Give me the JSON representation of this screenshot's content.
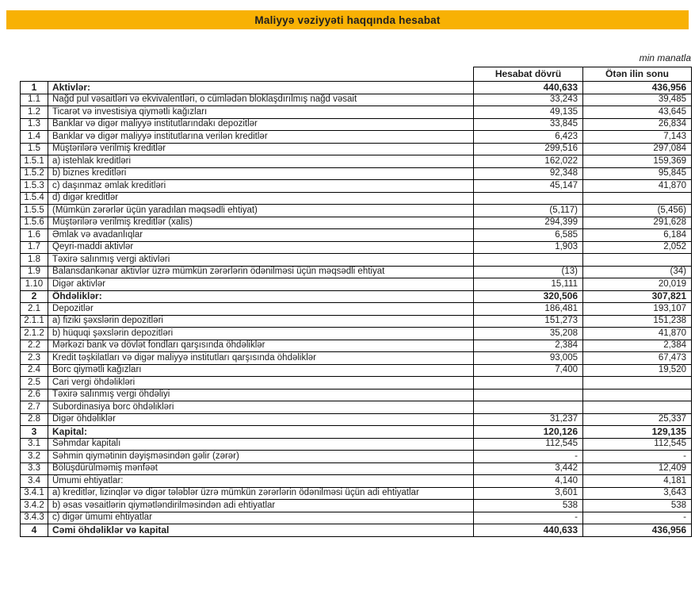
{
  "title": "Maliyyə vəziyyəti haqqında hesabat",
  "unit_note": "min manatla",
  "colors": {
    "banner_background": "#F8B104",
    "banner_text": "#1F1F1F",
    "table_border": "#000000",
    "text": "#1D1D1D"
  },
  "table": {
    "col_current": "Hesabat dövrü",
    "col_previous": "Ötən ilin sonu",
    "rows": [
      {
        "no": "1",
        "label": "Aktivlər:",
        "current": "440,633",
        "previous": "436,956",
        "bold": true
      },
      {
        "no": "1.1",
        "label": "Nağd pul vəsaitləri və ekvivalentləri, o cümlədən bloklaşdırılmış nağd vəsait",
        "current": "33,243",
        "previous": "39,485",
        "bold": false
      },
      {
        "no": "1.2",
        "label": "Ticarət və investisiya qiymətli kağızları",
        "current": "49,135",
        "previous": "43,645",
        "bold": false
      },
      {
        "no": "1.3",
        "label": "Banklar və digər maliyyə institutlarındakı depozitlər",
        "current": "33,845",
        "previous": "26,834",
        "bold": false
      },
      {
        "no": "1.4",
        "label": "Banklar və digər maliyyə institutlarına verilən kreditlər",
        "current": "6,423",
        "previous": "7,143",
        "bold": false
      },
      {
        "no": "1.5",
        "label": "Müştərilərə verilmiş kreditlər",
        "current": "299,516",
        "previous": "297,084",
        "bold": false
      },
      {
        "no": "1.5.1",
        "label": "a) istehlak kreditləri",
        "current": "162,022",
        "previous": "159,369",
        "bold": false
      },
      {
        "no": "1.5.2",
        "label": "b) biznes kreditləri",
        "current": "92,348",
        "previous": "95,845",
        "bold": false
      },
      {
        "no": "1.5.3",
        "label": "c) daşınmaz əmlak kreditləri",
        "current": "45,147",
        "previous": "41,870",
        "bold": false
      },
      {
        "no": "1.5.4",
        "label": "d) digər kreditlər",
        "current": "",
        "previous": "",
        "bold": false
      },
      {
        "no": "1.5.5",
        "label": "(Mümkün zərərlər üçün yaradılan məqsədli ehtiyat)",
        "current": "(5,117)",
        "previous": "(5,456)",
        "bold": false
      },
      {
        "no": "1.5.6",
        "label": "Müştərilərə verilmiş kreditlər (xalis)",
        "current": "294,399",
        "previous": "291,628",
        "bold": false
      },
      {
        "no": "1.6",
        "label": "Əmlak və avadanlıqlar",
        "current": "6,585",
        "previous": "6,184",
        "bold": false
      },
      {
        "no": "1.7",
        "label": "Qeyri-maddi aktivlər",
        "current": "1,903",
        "previous": "2,052",
        "bold": false
      },
      {
        "no": "1.8",
        "label": "Təxirə salınmış vergi aktivləri",
        "current": "",
        "previous": "",
        "bold": false
      },
      {
        "no": "1.9",
        "label": "Balansdankənar aktivlər üzrə mümkün zərərlərin ödənilməsi üçün məqsədli ehtiyat",
        "current": "(13)",
        "previous": "(34)",
        "bold": false
      },
      {
        "no": "1.10",
        "label": "Digər aktivlər",
        "current": "15,111",
        "previous": "20,019",
        "bold": false
      },
      {
        "no": "2",
        "label": "Öhdəliklər:",
        "current": "320,506",
        "previous": "307,821",
        "bold": true
      },
      {
        "no": "2.1",
        "label": "Depozitlər",
        "current": "186,481",
        "previous": "193,107",
        "bold": false
      },
      {
        "no": "2.1.1",
        "label": "a) fiziki şəxslərin depozitləri",
        "current": "151,273",
        "previous": "151,238",
        "bold": false
      },
      {
        "no": "2.1.2",
        "label": "b) hüquqi şəxslərin depozitləri",
        "current": "35,208",
        "previous": "41,870",
        "bold": false
      },
      {
        "no": "2.2",
        "label": "Mərkəzi bank və dövlət  fondları qarşısında öhdəliklər",
        "current": "2,384",
        "previous": "2,384",
        "bold": false
      },
      {
        "no": "2.3",
        "label": "Kredit təşkilatları və digər maliyyə institutları qarşısında öhdəliklər",
        "current": "93,005",
        "previous": "67,473",
        "bold": false
      },
      {
        "no": "2.4",
        "label": "Borc qiymətli kağızları",
        "current": "7,400",
        "previous": "19,520",
        "bold": false
      },
      {
        "no": "2.5",
        "label": "Cari vergi öhdəlikləri",
        "current": "",
        "previous": "",
        "bold": false
      },
      {
        "no": "2.6",
        "label": "Təxirə salınmış vergi öhdəliyi",
        "current": "",
        "previous": "",
        "bold": false
      },
      {
        "no": "2.7",
        "label": "Subordinasiya borc öhdəlikləri",
        "current": "",
        "previous": "",
        "bold": false
      },
      {
        "no": "2.8",
        "label": "Digər öhdəliklər",
        "current": "31,237",
        "previous": "25,337",
        "bold": false
      },
      {
        "no": "3",
        "label": "Kapital:",
        "current": "120,126",
        "previous": "129,135",
        "bold": true
      },
      {
        "no": "3.1",
        "label": "Səhmdar kapitalı",
        "current": "112,545",
        "previous": "112,545",
        "bold": false
      },
      {
        "no": "3.2",
        "label": "Səhmin qiymətinin dəyişməsindən gəlir (zərər)",
        "current": "-",
        "previous": "-",
        "bold": false
      },
      {
        "no": "3.3",
        "label": "Bölüşdürülməmiş mənfəət",
        "current": "3,442",
        "previous": "12,409",
        "bold": false
      },
      {
        "no": "3.4",
        "label": "Ümumi ehtiyatlar:",
        "current": "4,140",
        "previous": "4,181",
        "bold": false
      },
      {
        "no": "3.4.1",
        "label": "a) kreditlər, lizinqlər və digər tələblər üzrə mümkün zərərlərin ödənilməsi üçün adi ehtiyatlar",
        "current": "3,601",
        "previous": "3,643",
        "bold": false
      },
      {
        "no": "3.4.2",
        "label": "b) əsas vəsaitlərin qiymətləndirilməsindən adi ehtiyatlar",
        "current": "538",
        "previous": "538",
        "bold": false
      },
      {
        "no": "3.4.3",
        "label": "c) digər ümumi ehtiyatlar",
        "current": "-",
        "previous": "-",
        "bold": false
      },
      {
        "no": "4",
        "label": "Cəmi öhdəliklər və kapital",
        "current": "440,633",
        "previous": "436,956",
        "bold": true
      }
    ]
  }
}
